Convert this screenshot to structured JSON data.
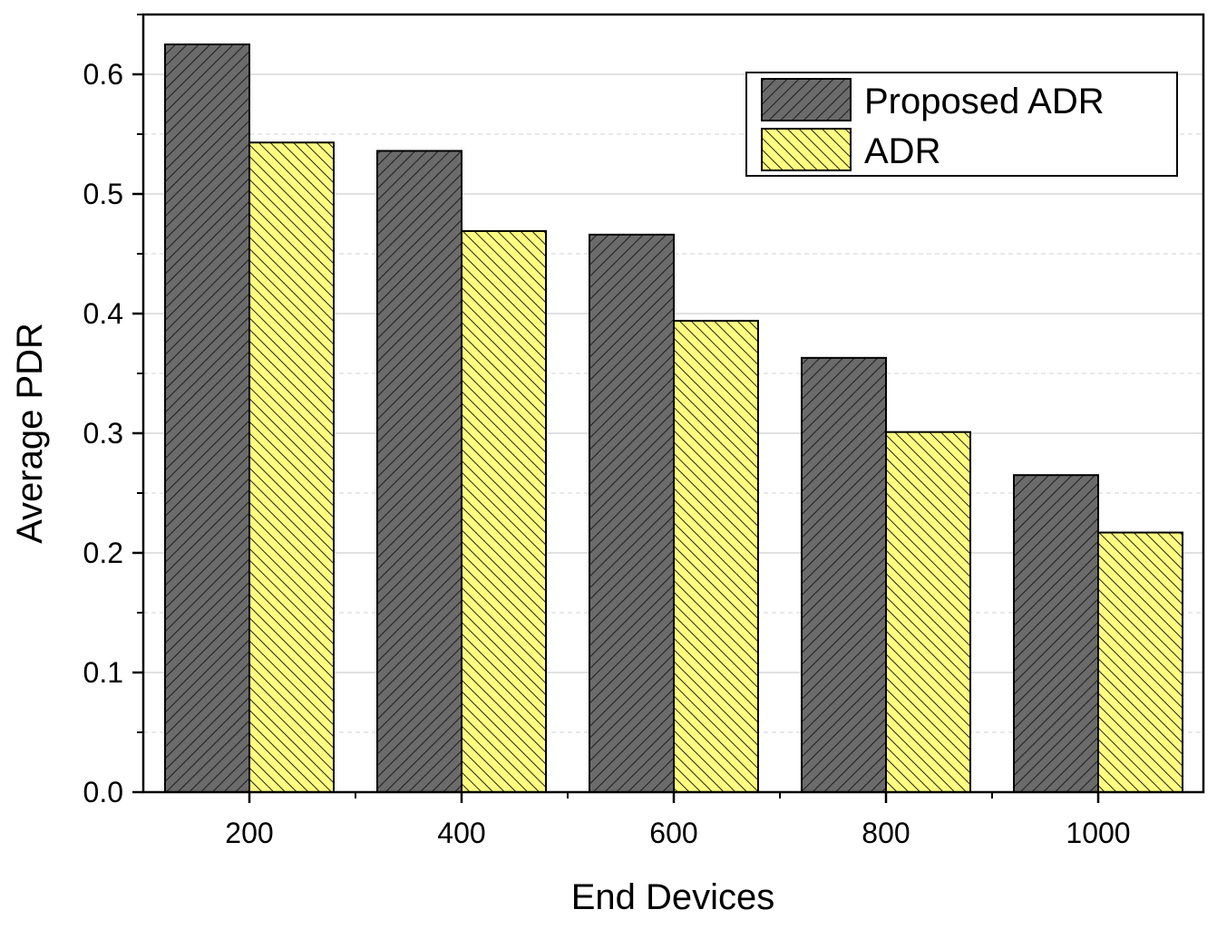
{
  "chart_data": {
    "type": "bar",
    "categories": [
      "200",
      "400",
      "600",
      "800",
      "1000"
    ],
    "series": [
      {
        "name": "Proposed ADR",
        "values": [
          0.625,
          0.536,
          0.466,
          0.363,
          0.265
        ],
        "color": "#6b6b6b",
        "pattern": "hatch-forward"
      },
      {
        "name": "ADR",
        "values": [
          0.543,
          0.469,
          0.394,
          0.301,
          0.217
        ],
        "color": "#ffff80",
        "pattern": "hatch-backward"
      }
    ],
    "xlabel": "End Devices",
    "ylabel": "Average PDR",
    "ylim": [
      0,
      0.65
    ],
    "yticks": [
      "0.0",
      "0.1",
      "0.2",
      "0.3",
      "0.4",
      "0.5",
      "0.6"
    ],
    "grid": true,
    "legend_position": "top-right"
  }
}
